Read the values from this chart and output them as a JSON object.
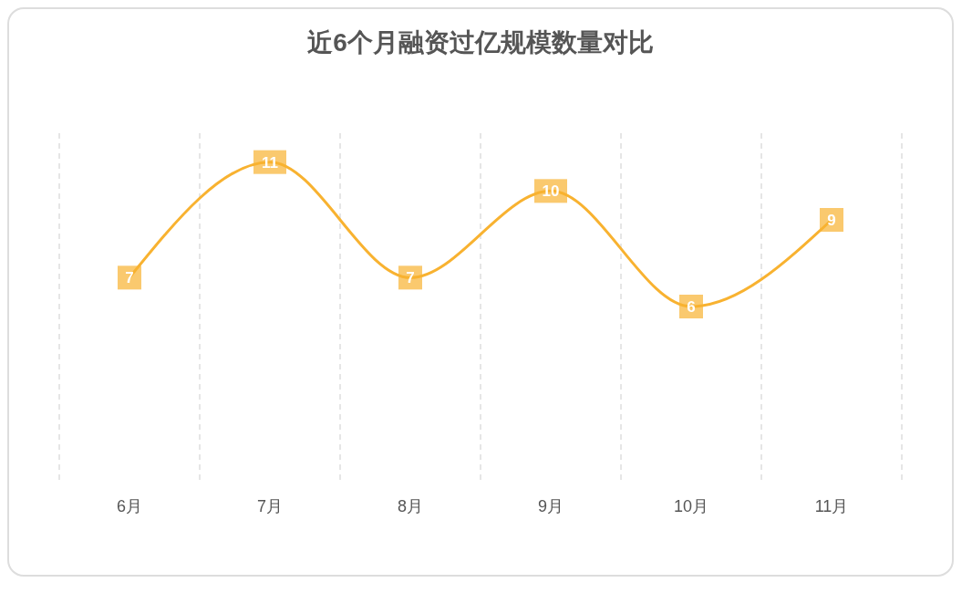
{
  "chart_data": {
    "type": "line",
    "title": "近6个月融资过亿规模数量对比",
    "categories": [
      "6月",
      "7月",
      "8月",
      "9月",
      "10月",
      "11月"
    ],
    "series": [
      {
        "color": "#f8b230",
        "values": [
          7,
          11,
          7,
          10,
          6,
          9
        ]
      }
    ],
    "data_labels": true,
    "grid": "x",
    "marker": "square",
    "line_style": "solid"
  }
}
